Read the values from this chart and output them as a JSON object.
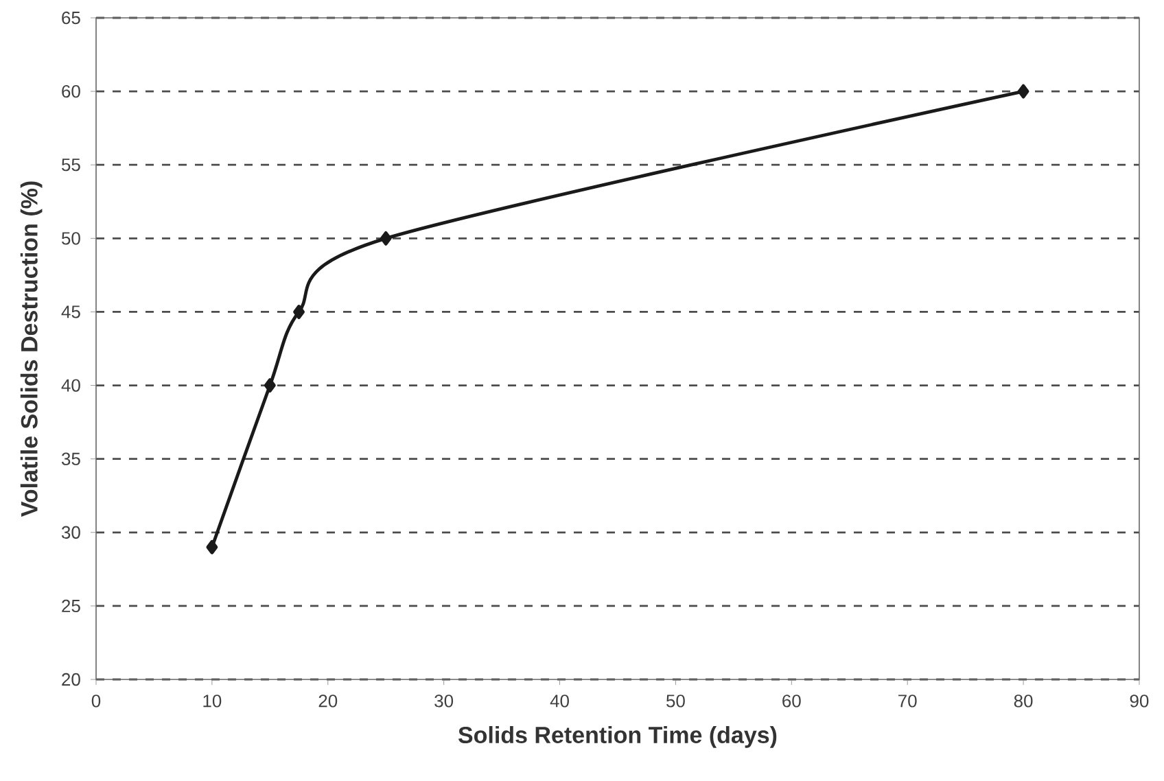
{
  "chart_data": {
    "type": "line",
    "xlabel": "Solids Retention Time (days)",
    "ylabel": "Volatile Solids Destruction (%)",
    "x": [
      10,
      15,
      17.5,
      25,
      80
    ],
    "series": [
      {
        "color": "#1a1a1a",
        "values": [
          29,
          40,
          45,
          50,
          60
        ]
      }
    ],
    "xlim": [
      0,
      90
    ],
    "xticks": [
      0,
      10,
      20,
      30,
      40,
      50,
      60,
      70,
      80,
      90
    ],
    "ylim": [
      20,
      65
    ],
    "yticks": [
      20,
      25,
      30,
      35,
      40,
      45,
      50,
      55,
      60,
      65
    ],
    "grid": "y",
    "marker": "diamond",
    "line_style": "solid"
  }
}
